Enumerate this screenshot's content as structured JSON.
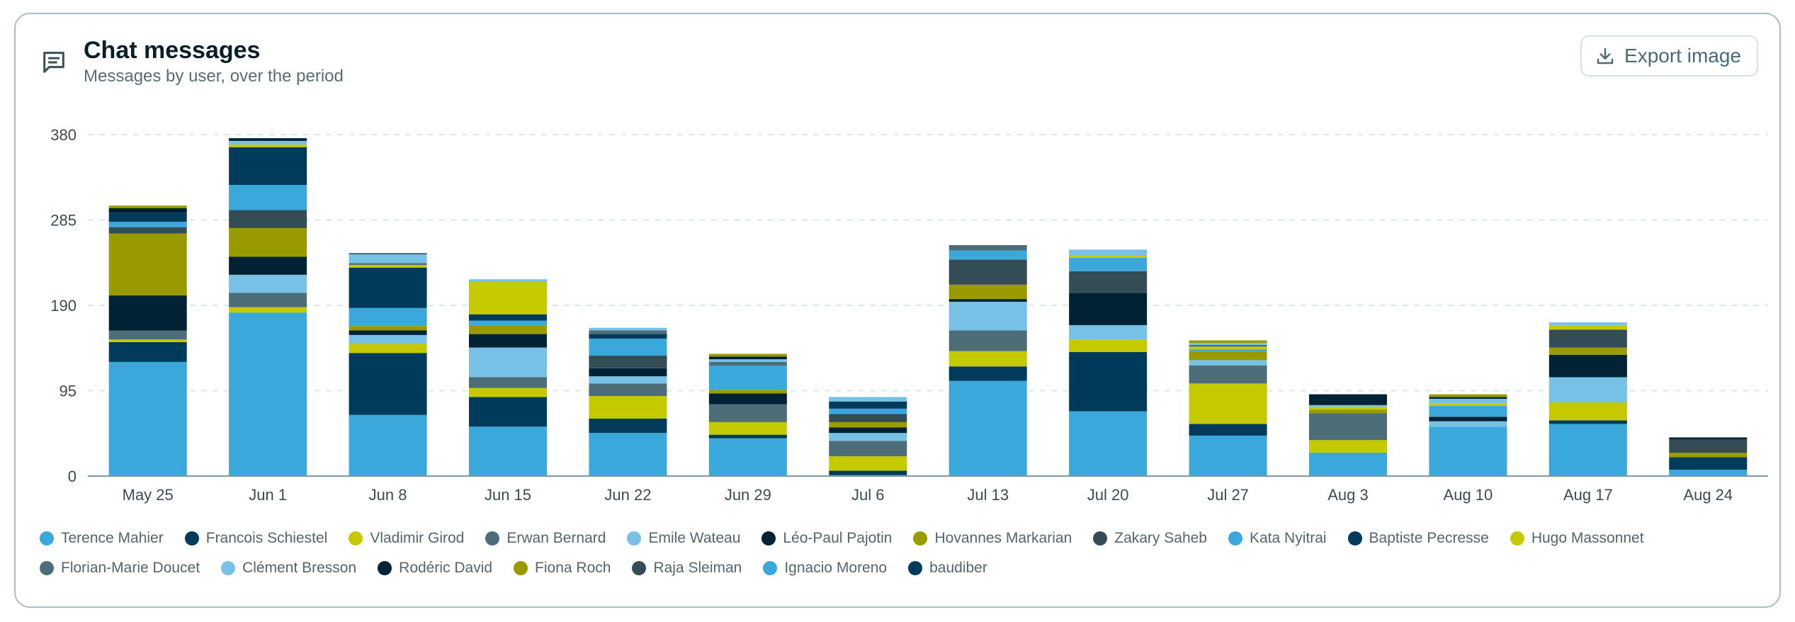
{
  "header": {
    "title": "Chat messages",
    "subtitle": "Messages by user, over the period",
    "icon": "chat-message-icon",
    "export_label": "Export image",
    "export_icon": "download-icon"
  },
  "chart_data": {
    "type": "bar",
    "stacked": true,
    "categories": [
      "May 25",
      "Jun 1",
      "Jun 8",
      "Jun 15",
      "Jun 22",
      "Jun 29",
      "Jul 6",
      "Jul 13",
      "Jul 20",
      "Jul 27",
      "Aug 3",
      "Aug 10",
      "Aug 17",
      "Aug 24"
    ],
    "ylim": [
      0,
      380
    ],
    "yticks": [
      0,
      95,
      190,
      285,
      380
    ],
    "grid": true,
    "legend_position": "bottom",
    "series": [
      {
        "name": "Terence Mahier",
        "color": "#3aa8db",
        "values": [
          127,
          182,
          68,
          55,
          48,
          42,
          1,
          106,
          72,
          45,
          26,
          55,
          58,
          7
        ]
      },
      {
        "name": "Francois Schiestel",
        "color": "#003b5c",
        "values": [
          22,
          0,
          69,
          33,
          16,
          4,
          5,
          16,
          66,
          13,
          0,
          0,
          4,
          14
        ]
      },
      {
        "name": "Vladimir Girod",
        "color": "#c5c900",
        "values": [
          3,
          6,
          10,
          10,
          25,
          14,
          16,
          17,
          14,
          45,
          14,
          0,
          20,
          0
        ]
      },
      {
        "name": "Erwan Bernard",
        "color": "#4d6d78",
        "values": [
          10,
          16,
          0,
          12,
          14,
          20,
          17,
          23,
          0,
          20,
          30,
          0,
          0,
          0
        ]
      },
      {
        "name": "Emile Wateau",
        "color": "#76c1e5",
        "values": [
          0,
          20,
          10,
          33,
          8,
          0,
          9,
          32,
          16,
          6,
          0,
          6,
          28,
          0
        ]
      },
      {
        "name": "Léo-Paul Pajotin",
        "color": "#002235",
        "values": [
          39,
          20,
          5,
          15,
          9,
          12,
          6,
          3,
          36,
          0,
          0,
          5,
          25,
          0
        ]
      },
      {
        "name": "Hovannes Markarian",
        "color": "#999a00",
        "values": [
          69,
          32,
          5,
          10,
          0,
          4,
          6,
          16,
          0,
          10,
          4,
          0,
          8,
          5
        ]
      },
      {
        "name": "Zakary Saheb",
        "color": "#334c55",
        "values": [
          7,
          20,
          0,
          0,
          14,
          0,
          9,
          28,
          24,
          0,
          0,
          0,
          20,
          15
        ]
      },
      {
        "name": "Kata Nyitrai",
        "color": "#3aa8db",
        "values": [
          6,
          28,
          20,
          5,
          19,
          27,
          6,
          10,
          15,
          2,
          0,
          12,
          0,
          0
        ]
      },
      {
        "name": "Baptiste Pecresse",
        "color": "#003b5c",
        "values": [
          10,
          42,
          45,
          7,
          5,
          0,
          8,
          0,
          0,
          0,
          0,
          0,
          0,
          0
        ]
      },
      {
        "name": "Hugo Massonnet",
        "color": "#c5c900",
        "values": [
          0,
          3,
          3,
          36,
          0,
          0,
          0,
          0,
          3,
          3,
          3,
          3,
          5,
          0
        ]
      },
      {
        "name": "Florian-Marie Doucet",
        "color": "#4d6d78",
        "values": [
          0,
          0,
          2,
          0,
          4,
          4,
          0,
          6,
          0,
          2,
          0,
          0,
          0,
          0
        ]
      },
      {
        "name": "Clément Bresson",
        "color": "#76c1e5",
        "values": [
          0,
          4,
          10,
          3,
          3,
          3,
          5,
          0,
          6,
          2,
          2,
          5,
          3,
          0
        ]
      },
      {
        "name": "Rodéric David",
        "color": "#002235",
        "values": [
          5,
          3,
          1,
          0,
          0,
          3,
          0,
          0,
          0,
          0,
          12,
          2,
          0,
          2
        ]
      },
      {
        "name": "Fiona Roch",
        "color": "#999a00",
        "values": [
          3,
          0,
          0,
          0,
          0,
          3,
          0,
          0,
          0,
          3,
          0,
          3,
          0,
          0
        ]
      },
      {
        "name": "Raja Sleiman",
        "color": "#334c55",
        "values": [
          0,
          0,
          0,
          0,
          0,
          0,
          0,
          0,
          0,
          0,
          0,
          0,
          0,
          0
        ]
      },
      {
        "name": "Ignacio Moreno",
        "color": "#3aa8db",
        "values": [
          0,
          0,
          0,
          0,
          0,
          0,
          0,
          0,
          0,
          0,
          0,
          0,
          0,
          0
        ]
      },
      {
        "name": "baudiber",
        "color": "#003b5c",
        "values": [
          0,
          0,
          0,
          0,
          0,
          0,
          0,
          0,
          0,
          0,
          0,
          0,
          0,
          0
        ]
      }
    ]
  }
}
